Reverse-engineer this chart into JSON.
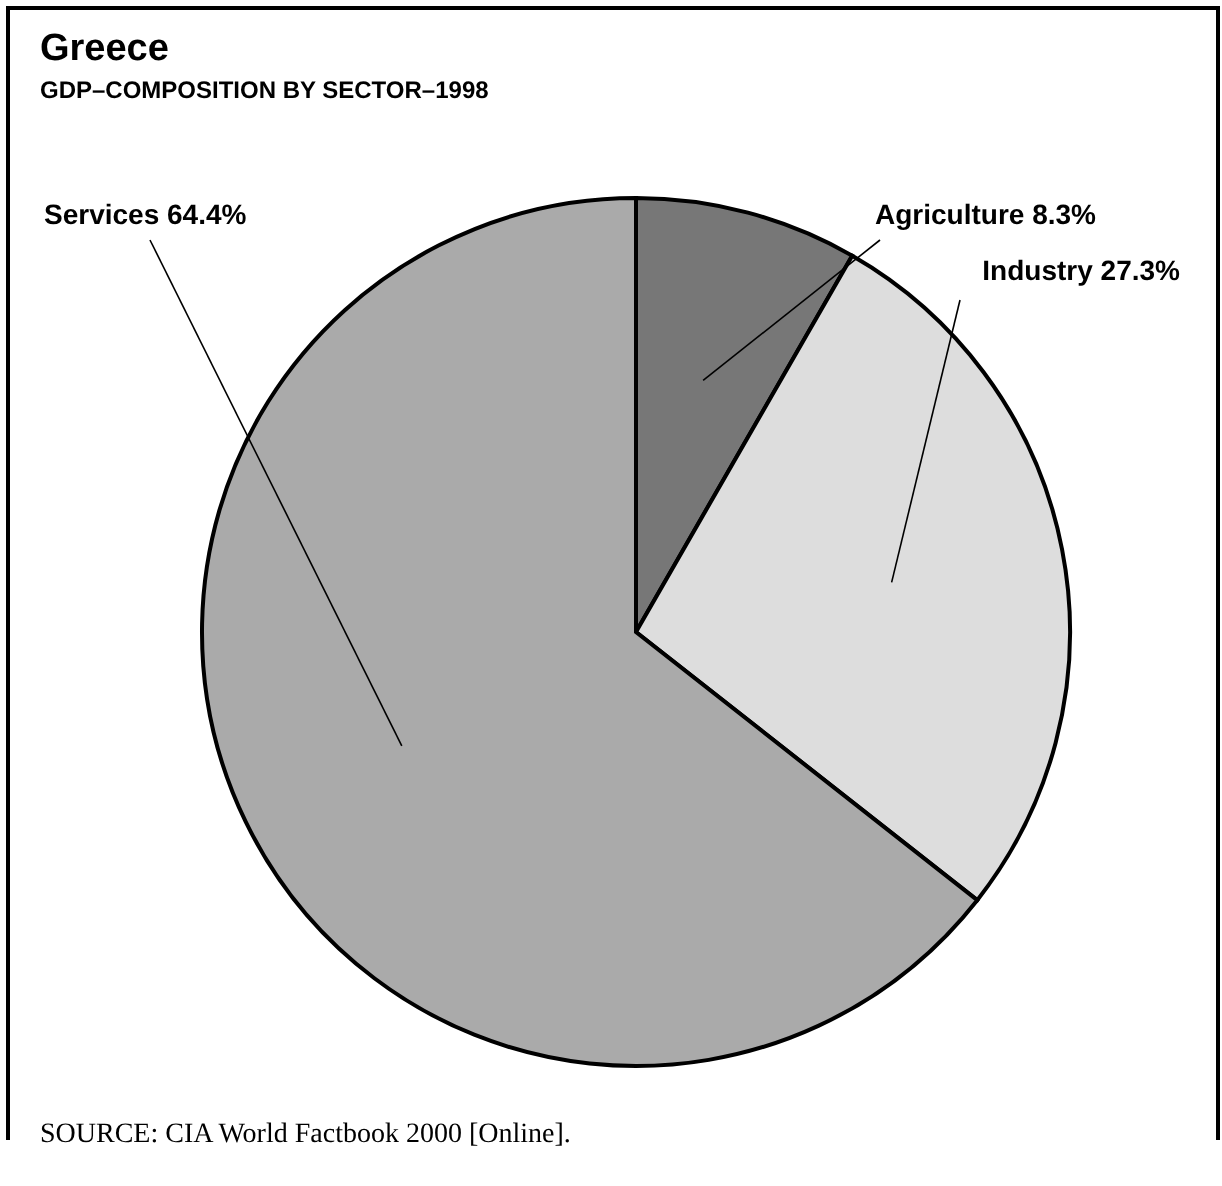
{
  "chart_data": {
    "type": "pie",
    "title": "Greece",
    "subtitle": "GDP–COMPOSITION BY SECTOR–1998",
    "categories": [
      "Agriculture",
      "Industry",
      "Services"
    ],
    "values": [
      8.3,
      27.3,
      64.4
    ],
    "colors": [
      "#777777",
      "#dddddd",
      "#aaaaaa"
    ],
    "value_labels": [
      "8.3%",
      "27.3%",
      "64.4%"
    ],
    "legend": false,
    "annotations": [
      "SOURCE: CIA World Factbook 2000 [Online]."
    ]
  }
}
